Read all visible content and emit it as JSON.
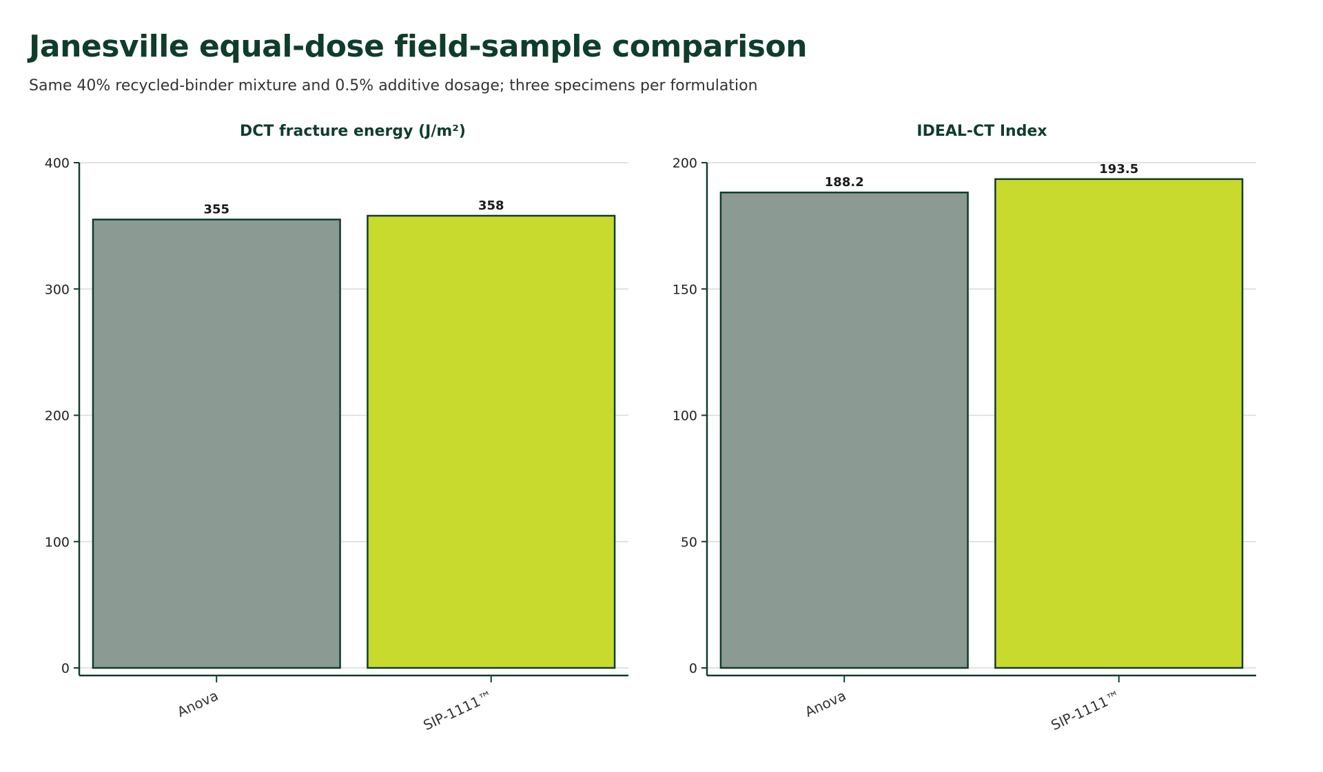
{
  "title": "Janesville equal-dose field-sample comparison",
  "subtitle": "Same 40% recycled-binder mixture and 0.5% additive dosage; three specimens per formulation",
  "colors": {
    "title": "#0f3d2b",
    "axis": "#0f3d2b",
    "grid": "#d9d9d9",
    "bar_outline": "#0f3d2b",
    "anova": "#8b9a92",
    "sip": "#c8da2e"
  },
  "chart_data": [
    {
      "type": "bar",
      "title": "DCT fracture energy (J/m²)",
      "categories": [
        "Anova",
        "SIP-1111™"
      ],
      "values": [
        355,
        358
      ],
      "value_labels": [
        "355",
        "358"
      ],
      "bar_colors": [
        "#8b9a92",
        "#c8da2e"
      ],
      "ylim": [
        0,
        400
      ],
      "yticks": [
        0,
        100,
        200,
        300,
        400
      ],
      "ytick_labels": [
        "0",
        "100",
        "200",
        "300",
        "400"
      ],
      "xlabel": "",
      "ylabel": "",
      "grid": true,
      "legend": "none"
    },
    {
      "type": "bar",
      "title": "IDEAL-CT Index",
      "categories": [
        "Anova",
        "SIP-1111™"
      ],
      "values": [
        188.2,
        193.5
      ],
      "value_labels": [
        "188.2",
        "193.5"
      ],
      "bar_colors": [
        "#8b9a92",
        "#c8da2e"
      ],
      "ylim": [
        0,
        200
      ],
      "yticks": [
        0,
        50,
        100,
        150,
        200
      ],
      "ytick_labels": [
        "0",
        "50",
        "100",
        "150",
        "200"
      ],
      "xlabel": "",
      "ylabel": "",
      "grid": true,
      "legend": "none"
    }
  ]
}
